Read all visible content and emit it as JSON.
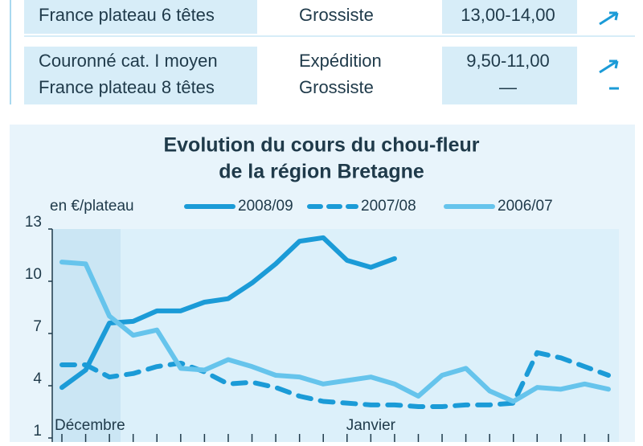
{
  "table": {
    "rows": [
      {
        "product": [
          "France plateau 6 têtes"
        ],
        "stage": [
          "Grossiste"
        ],
        "price": [
          "13,00-14,00"
        ]
      },
      {
        "product": [
          "Couronné cat. I moyen",
          "France plateau 8 têtes"
        ],
        "stage": [
          "Expédition",
          "Grossiste"
        ],
        "price": [
          "9,50-11,00",
          "—"
        ]
      }
    ]
  },
  "chart_data": {
    "type": "line",
    "title": [
      "Evolution du cours du chou-fleur",
      "de la région Bretagne"
    ],
    "y_label": "en €/plateau",
    "categories": [
      "Décembre",
      null,
      null,
      null,
      null,
      null,
      null,
      null,
      null,
      null,
      null,
      null,
      null,
      "Janvier",
      null,
      null,
      null,
      null,
      null,
      null,
      null,
      null,
      null,
      null
    ],
    "series": [
      {
        "name": "2008/09",
        "color": "#1b9bd7",
        "dash": false,
        "values": [
          3.9,
          4.9,
          7.6,
          7.7,
          8.3,
          8.3,
          8.8,
          9.0,
          9.9,
          11.0,
          12.3,
          12.5,
          11.2,
          10.8,
          11.3,
          null,
          null,
          null,
          null,
          null,
          null,
          null,
          null,
          null
        ]
      },
      {
        "name": "2007/08",
        "color": "#1b9bd7",
        "dash": true,
        "values": [
          5.2,
          5.2,
          4.5,
          4.7,
          5.1,
          5.3,
          4.8,
          4.1,
          4.2,
          3.9,
          3.4,
          3.1,
          3.0,
          2.9,
          2.9,
          2.8,
          2.8,
          2.9,
          2.9,
          3.0,
          5.9,
          5.6,
          5.1,
          4.6
        ]
      },
      {
        "name": "2006/07",
        "color": "#66c4ec",
        "dash": false,
        "values": [
          11.1,
          11.0,
          8.0,
          6.9,
          7.2,
          5.0,
          4.9,
          5.5,
          5.1,
          4.6,
          4.5,
          4.1,
          4.3,
          4.5,
          4.1,
          3.4,
          4.6,
          5.0,
          3.7,
          3.1,
          3.9,
          3.8,
          4.1,
          3.8
        ]
      }
    ],
    "ylim": [
      1,
      13
    ],
    "yticks": [
      1,
      4,
      7,
      10,
      13
    ]
  }
}
